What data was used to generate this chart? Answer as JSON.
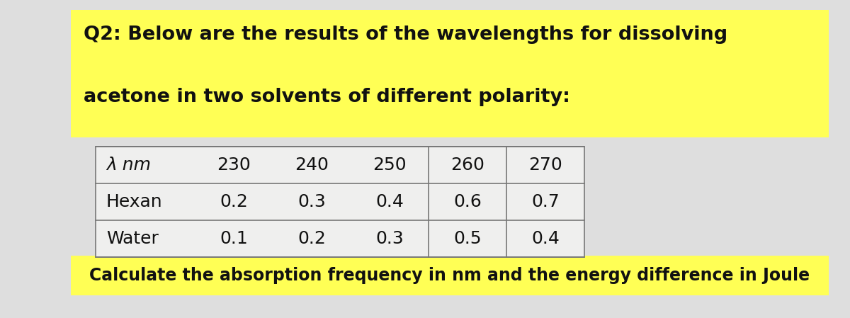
{
  "title_line1": "Q2: Below are the results of the wavelengths for dissolving",
  "title_line2": "acetone in two solvents of different polarity:",
  "footer": "Calculate the absorption frequency in nm and the energy difference in Joule",
  "table_header": [
    "λ nm",
    "230",
    "240",
    "250",
    "260",
    "270"
  ],
  "table_row1": [
    "Hexan",
    "0.2",
    "0.3",
    "0.4",
    "0.6",
    "0.7"
  ],
  "table_row2": [
    "Water",
    "0.1",
    "0.2",
    "0.3",
    "0.5",
    "0.4"
  ],
  "highlight_color": "#FFFF55",
  "paper_color": "#DEDEDE",
  "table_bg": "#EFEFEE",
  "text_color": "#111111",
  "title_fontsize": 19.5,
  "table_fontsize": 18,
  "footer_fontsize": 17
}
